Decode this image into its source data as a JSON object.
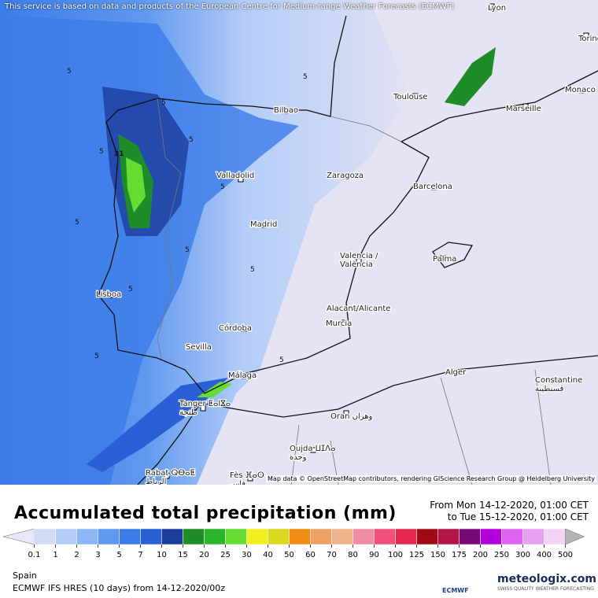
{
  "header": {
    "notice": "This service is based on data and products of the European Centre for Medium-range Weather Forecasts (ECMWF)"
  },
  "map": {
    "cities": [
      "Lyon",
      "Torino",
      "Toulouse",
      "Monaco",
      "Marseille",
      "Bilbao",
      "Valladolid",
      "Zaragoza",
      "Barcelona",
      "Madrid",
      "Valencia /\nValència",
      "Palma",
      "Lisboa",
      "Córdoba",
      "Alacant/Alicante",
      "Murcia",
      "Sevilla",
      "Málaga",
      "Alger",
      "Constantine\nقسنطينة",
      "Tanger ⵟⴰⵏⴵⴰ\nطنجة",
      "Oran وهران",
      "Oujda ⵡⵊⴷⴰ\nوجدة",
      "Rabat ⵕⴱⴰⵟ\nالرباط",
      "Fès ⴼⴰⵙ\nفاس"
    ],
    "contour_labels": [
      "5",
      "5",
      "5",
      "5",
      "5",
      "5",
      "5",
      "5",
      "5",
      "5",
      "5",
      "5",
      "31"
    ],
    "attribution": "Map data © OpenStreetMap contributors, rendering GIScience Research Group @ Heidelberg University"
  },
  "footer": {
    "title": "Accumulated total precipitation (mm)",
    "from": "From Mon 14-12-2020, 01:00 CET",
    "to": "to Tue 15-12-2020, 01:00 CET",
    "legend": {
      "ticks": [
        0.1,
        1,
        2,
        3,
        5,
        7,
        10,
        15,
        20,
        25,
        30,
        40,
        50,
        60,
        70,
        80,
        90,
        100,
        125,
        150,
        175,
        200,
        250,
        300,
        400,
        500
      ],
      "colors": [
        "#e8e8f6",
        "#d2dcf6",
        "#b4cdf7",
        "#8cb6f5",
        "#5f98ef",
        "#3c7ce8",
        "#2a5fd6",
        "#1c3c9c",
        "#1e8c28",
        "#2db42d",
        "#64dc32",
        "#f0f020",
        "#d8d81e",
        "#f08c14",
        "#f0a060",
        "#f0b48c",
        "#f08ca6",
        "#f0507a",
        "#e62850",
        "#a00a14",
        "#b41446",
        "#780a78",
        "#b400dc",
        "#dc64f0",
        "#e6a0f0",
        "#f3d4f7",
        "#b4b4b4"
      ]
    },
    "region": "Spain",
    "model": "ECMWF IFS HRES (10 days) from 14-12-2020/00z",
    "ecmwf": "ECMWF",
    "brand": "meteologix.com",
    "tagline": "SWISS QUALITY WEATHER FORECASTING"
  }
}
